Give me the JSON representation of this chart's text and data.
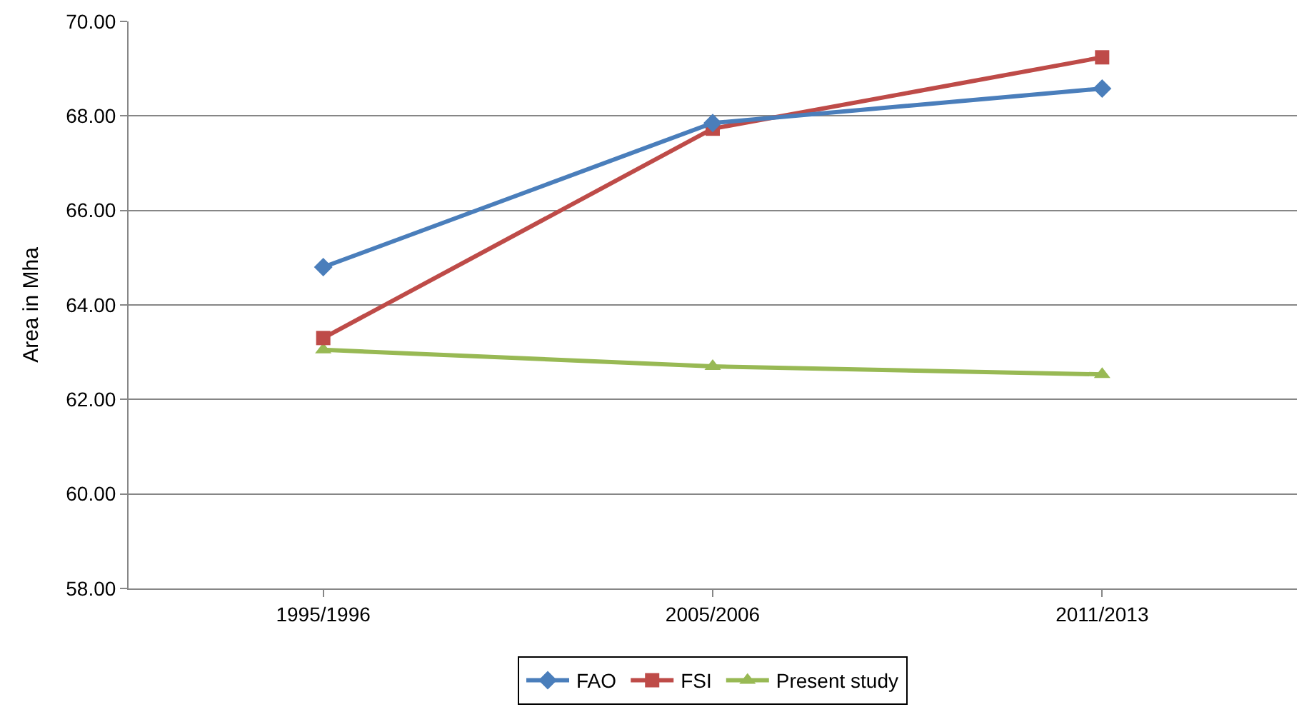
{
  "chart_data": {
    "type": "line",
    "ylabel": "Area in Mha",
    "categories": [
      "1995/1996",
      "2005/2006",
      "2011/2013"
    ],
    "series": [
      {
        "name": "FAO",
        "color": "#4a7ebb",
        "marker": "diamond",
        "values": [
          64.8,
          67.85,
          68.58
        ]
      },
      {
        "name": "FSI",
        "color": "#be4b48",
        "marker": "square",
        "values": [
          63.3,
          67.73,
          69.24
        ]
      },
      {
        "name": "Present study",
        "color": "#98b954",
        "marker": "triangle",
        "values": [
          63.05,
          62.7,
          62.53
        ]
      }
    ],
    "ylim": [
      58,
      70
    ],
    "yticks": [
      {
        "value": 58,
        "label": "58.00"
      },
      {
        "value": 60,
        "label": "60.00"
      },
      {
        "value": 62,
        "label": "62.00"
      },
      {
        "value": 64,
        "label": "64.00"
      },
      {
        "value": 66,
        "label": "66.00"
      },
      {
        "value": 68,
        "label": "68.00"
      },
      {
        "value": 70,
        "label": "70.00"
      }
    ],
    "grid": "y",
    "legend": "bottom",
    "line_style": "solid"
  }
}
